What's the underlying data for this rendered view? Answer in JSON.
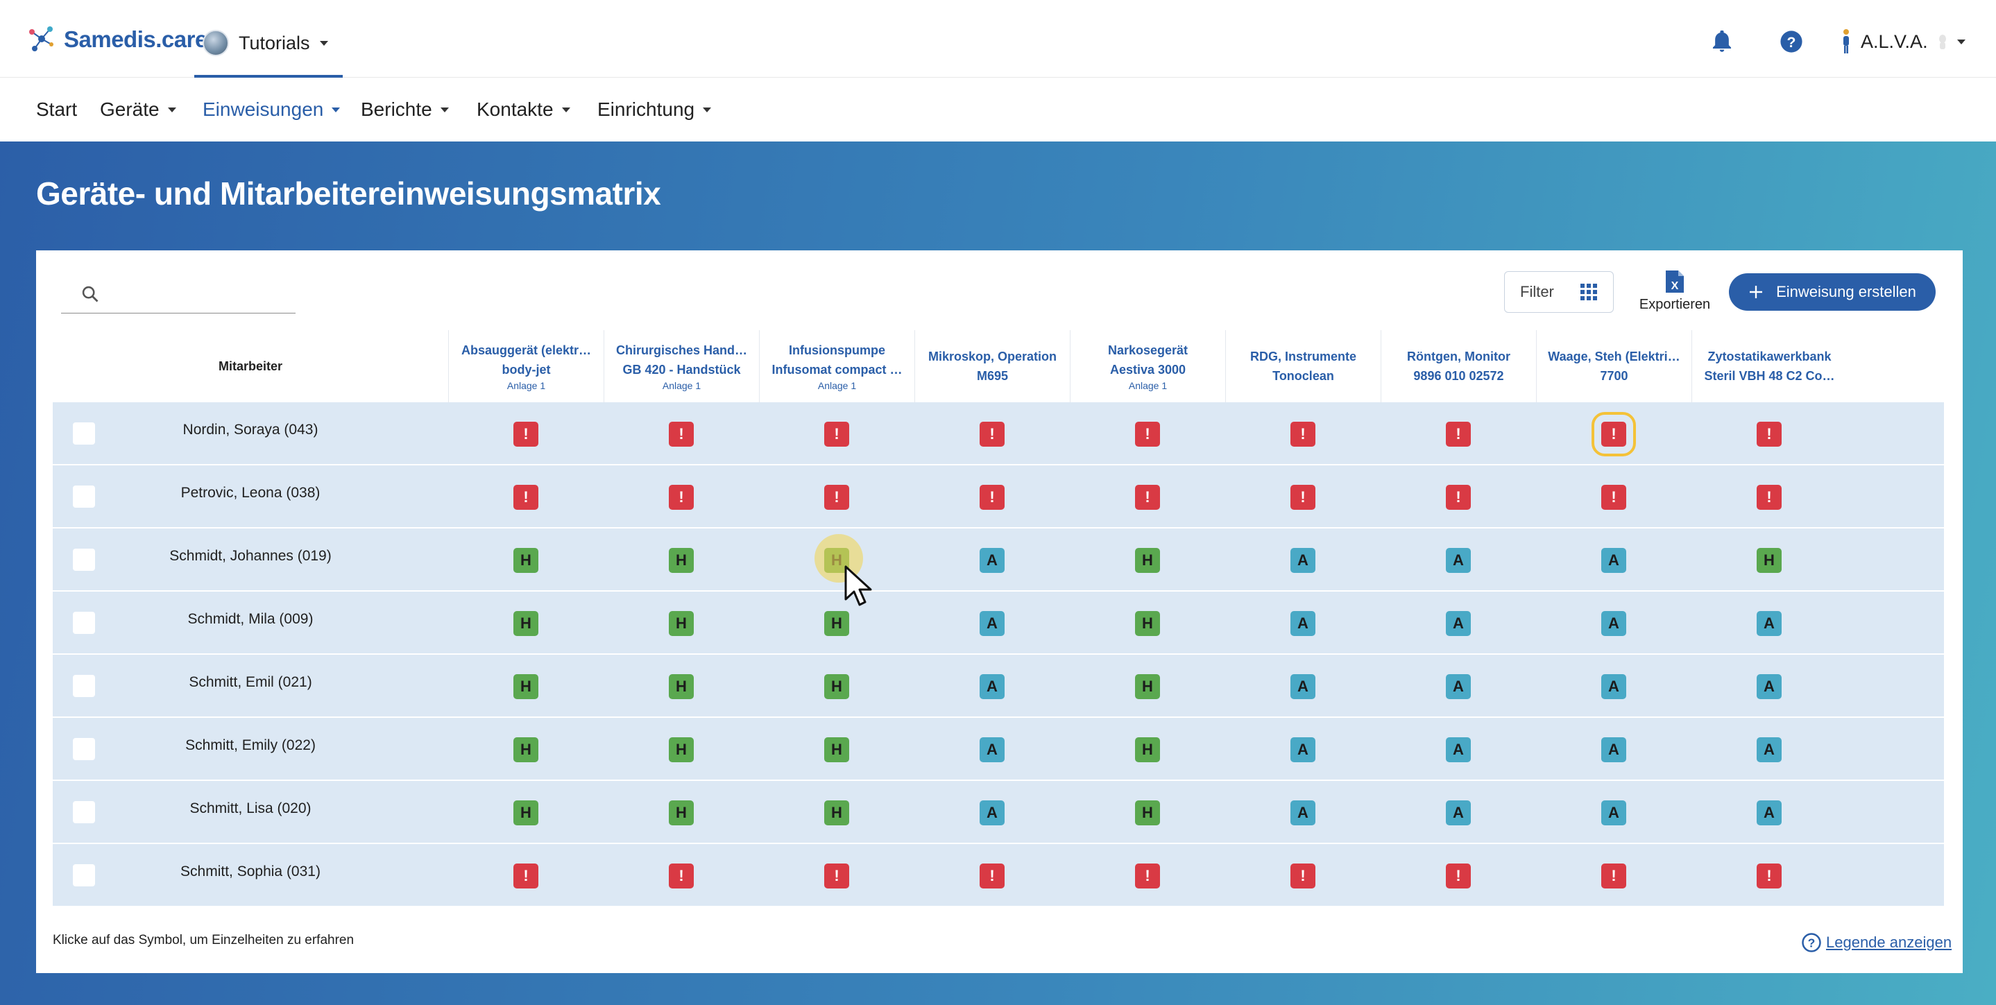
{
  "app": {
    "logo_text": "Samedis.care",
    "tenant": "Tutorials",
    "user": "A.L.V.A."
  },
  "nav": [
    {
      "label": "Start",
      "dropdown": false,
      "active": false
    },
    {
      "label": "Geräte",
      "dropdown": true,
      "active": false
    },
    {
      "label": "Einweisungen",
      "dropdown": true,
      "active": true
    },
    {
      "label": "Berichte",
      "dropdown": true,
      "active": false
    },
    {
      "label": "Kontakte",
      "dropdown": true,
      "active": false
    },
    {
      "label": "Einrichtung",
      "dropdown": true,
      "active": false
    }
  ],
  "page": {
    "title": "Geräte- und Mitarbeitereinweisungsmatrix"
  },
  "toolbar": {
    "search_placeholder": "",
    "filter_label": "Filter",
    "export_label": "Exportieren",
    "create_label": "Einweisung erstellen"
  },
  "table": {
    "employee_header": "Mitarbeiter",
    "columns": [
      {
        "line1": "Absauggerät (elektr…",
        "line2": "body-jet",
        "sub": "Anlage 1"
      },
      {
        "line1": "Chirurgisches Hand…",
        "line2": "GB 420 - Handstück",
        "sub": "Anlage 1"
      },
      {
        "line1": "Infusionspumpe",
        "line2": "Infusomat compact …",
        "sub": "Anlage 1"
      },
      {
        "line1": "Mikroskop, Operation",
        "line2": "M695",
        "sub": ""
      },
      {
        "line1": "Narkosegerät",
        "line2": "Aestiva 3000",
        "sub": "Anlage 1"
      },
      {
        "line1": "RDG, Instrumente",
        "line2": "Tonoclean",
        "sub": ""
      },
      {
        "line1": "Röntgen, Monitor",
        "line2": "9896 010 02572",
        "sub": ""
      },
      {
        "line1": "Waage, Steh (Elektri…",
        "line2": "7700",
        "sub": ""
      },
      {
        "line1": "Zytostatikawerkbank",
        "line2": "Steril VBH 48 C2 Co…",
        "sub": ""
      }
    ],
    "rows": [
      {
        "name": "Nordin, Soraya (043)",
        "cells": [
          "!",
          "!",
          "!",
          "!",
          "!",
          "!",
          "!",
          "!",
          "!"
        ]
      },
      {
        "name": "Petrovic, Leona (038)",
        "cells": [
          "!",
          "!",
          "!",
          "!",
          "!",
          "!",
          "!",
          "!",
          "!"
        ]
      },
      {
        "name": "Schmidt, Johannes (019)",
        "cells": [
          "H",
          "H",
          "H",
          "A",
          "H",
          "A",
          "A",
          "A",
          "H"
        ]
      },
      {
        "name": "Schmidt, Mila (009)",
        "cells": [
          "H",
          "H",
          "H",
          "A",
          "H",
          "A",
          "A",
          "A",
          "A"
        ]
      },
      {
        "name": "Schmitt, Emil (021)",
        "cells": [
          "H",
          "H",
          "H",
          "A",
          "H",
          "A",
          "A",
          "A",
          "A"
        ]
      },
      {
        "name": "Schmitt, Emily (022)",
        "cells": [
          "H",
          "H",
          "H",
          "A",
          "H",
          "A",
          "A",
          "A",
          "A"
        ]
      },
      {
        "name": "Schmitt, Lisa (020)",
        "cells": [
          "H",
          "H",
          "H",
          "A",
          "H",
          "A",
          "A",
          "A",
          "A"
        ]
      },
      {
        "name": "Schmitt, Sophia (031)",
        "cells": [
          "!",
          "!",
          "!",
          "!",
          "!",
          "!",
          "!",
          "!",
          "!"
        ]
      }
    ]
  },
  "footer": {
    "hint": "Klicke auf das Symbol, um Einzelheiten zu erfahren",
    "legend_link": "Legende anzeigen"
  },
  "colors": {
    "brand": "#2a5ea8",
    "missing": "#d93a44",
    "holder": "#5aa84f",
    "user": "#49a9c6",
    "row_bg": "#dce8f4",
    "focus": "#f4c238"
  },
  "icons": {
    "notifications": "bell-icon",
    "help": "help-icon",
    "search": "search-icon",
    "filter": "grid-icon",
    "export": "excel-icon",
    "create": "plus-icon",
    "legend": "help-circle-icon"
  }
}
